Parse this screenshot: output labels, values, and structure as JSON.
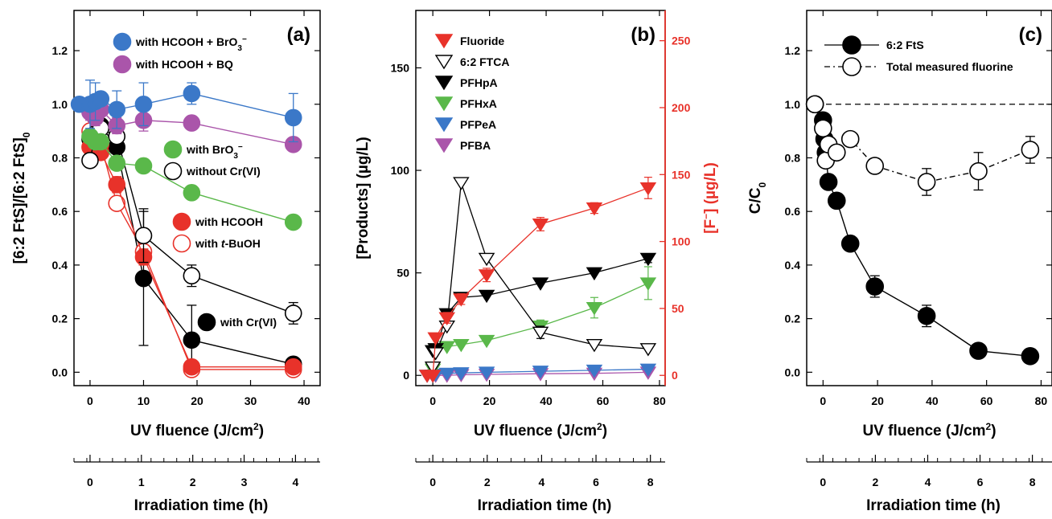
{
  "chart_data": [
    {
      "id": "a",
      "type": "scatter",
      "panel_label": "(a)",
      "ylabel_parts": [
        "[6:2 FtS]/[6:2 FtS]",
        "0"
      ],
      "xlabel_main": "UV fluence (J/cm",
      "xlabel_sup": "2",
      "xlabel_end": ")",
      "xlim": [
        -3,
        43
      ],
      "ylim": [
        -0.05,
        1.35
      ],
      "xticks": [
        0,
        10,
        20,
        30,
        40
      ],
      "yticks": [
        0.0,
        0.2,
        0.4,
        0.6,
        0.8,
        1.0,
        1.2
      ],
      "ytick_labels": [
        "0.0",
        "0.2",
        "0.4",
        "0.6",
        "0.8",
        "1.0",
        "1.2"
      ],
      "secondary_xaxis": {
        "label": "Irradiation time (h)",
        "ticks": [
          "0",
          "1",
          "2",
          "3",
          "4"
        ],
        "tick_fluence": [
          0,
          9.6,
          19.2,
          28.8,
          38.4
        ]
      },
      "series": [
        {
          "name": "with HCOOH + BrO3⁻",
          "color": "#3b78c8",
          "fill": "filled",
          "x": [
            -2,
            0,
            1,
            2,
            5,
            10,
            19,
            38
          ],
          "y": [
            1.0,
            1.0,
            1.01,
            1.02,
            0.98,
            1.0,
            1.04,
            0.95
          ],
          "err": [
            0,
            0.09,
            0.07,
            0,
            0.07,
            0.08,
            0.04,
            0.09
          ]
        },
        {
          "name": "with HCOOH + BQ",
          "color": "#aa55aa",
          "fill": "filled",
          "x": [
            0,
            1,
            2,
            5,
            10,
            19,
            38
          ],
          "y": [
            0.97,
            0.95,
            0.98,
            0.92,
            0.94,
            0.93,
            0.85
          ],
          "err": [
            0.03,
            0.03,
            0,
            0.03,
            0.04,
            0.02,
            0
          ]
        },
        {
          "name": "with BrO3⁻",
          "color": "#5ab84a",
          "fill": "filled",
          "x": [
            0,
            1,
            2,
            5,
            10,
            19,
            38
          ],
          "y": [
            0.88,
            0.86,
            0.86,
            0.78,
            0.77,
            0.67,
            0.56
          ],
          "err": [
            0,
            0,
            0,
            0,
            0,
            0,
            0
          ]
        },
        {
          "name": "without Cr(VI)",
          "color": "#000000",
          "fill": "open",
          "x": [
            0,
            1,
            2,
            5,
            10,
            19,
            38
          ],
          "y": [
            0.79,
            0.89,
            0.91,
            0.88,
            0.51,
            0.36,
            0.22
          ],
          "err": [
            0,
            0.03,
            0,
            0.05,
            0.1,
            0.04,
            0.04
          ]
        },
        {
          "name": "with HCOOH",
          "color": "#e8322a",
          "fill": "filled",
          "x": [
            0,
            1,
            2,
            5,
            10,
            19,
            38
          ],
          "y": [
            0.84,
            0.83,
            0.82,
            0.7,
            0.43,
            0.02,
            0.02
          ],
          "err": [
            0,
            0,
            0,
            0.03,
            0.03,
            0,
            0
          ]
        },
        {
          "name": "with t-BuOH",
          "color": "#e8322a",
          "fill": "open",
          "x": [
            0,
            1,
            2,
            5,
            10,
            19,
            38
          ],
          "y": [
            0.9,
            0.88,
            0.85,
            0.63,
            0.45,
            0.01,
            0.01
          ],
          "err": [
            0,
            0,
            0,
            0,
            0,
            0,
            0
          ]
        },
        {
          "name": "with Cr(VI)",
          "color": "#000000",
          "fill": "filled",
          "x": [
            0,
            1,
            2,
            5,
            10,
            19,
            38
          ],
          "y": [
            0.87,
            0.95,
            0.92,
            0.84,
            0.35,
            0.12,
            0.03
          ],
          "err": [
            0.03,
            0,
            0,
            0,
            0.25,
            0.13,
            0
          ]
        }
      ],
      "legend_top": [
        0,
        1
      ],
      "legend_middle": [
        2,
        3
      ],
      "legend_lower": [
        4,
        5
      ],
      "legend_bottom": [
        6
      ]
    },
    {
      "id": "b",
      "type": "line",
      "panel_label": "(b)",
      "ylabel_left": "[Products] (µg/L)",
      "ylabel_right_pre": "[F",
      "ylabel_right_sup": "−",
      "ylabel_right_post": "] (µg/L)",
      "xlabel_main": "UV fluence (J/cm",
      "xlabel_sup": "2",
      "xlabel_end": ")",
      "xlim": [
        -6,
        82
      ],
      "ylim": [
        -5,
        178
      ],
      "y2lim": [
        -7.66,
        272.6
      ],
      "xticks": [
        0,
        20,
        40,
        60,
        80
      ],
      "yticks": [
        0,
        50,
        100,
        150
      ],
      "y2ticks": [
        0,
        50,
        100,
        150,
        200,
        250
      ],
      "secondary_xaxis": {
        "label": "Irradiation time (h)",
        "ticks": [
          "0",
          "2",
          "4",
          "6",
          "8"
        ],
        "tick_fluence": [
          0,
          19.2,
          38.4,
          57.6,
          76.8
        ]
      },
      "series": [
        {
          "name": "Fluoride",
          "color": "#e8322a",
          "fill": "filled",
          "marker": "tri-down",
          "axis": "right",
          "x": [
            -2,
            0,
            1,
            5,
            10,
            19,
            38,
            57,
            76
          ],
          "y": [
            0,
            0,
            28,
            43,
            57,
            75,
            113,
            125,
            140
          ],
          "err": [
            0,
            0,
            0,
            4,
            4,
            5,
            5,
            4,
            8
          ]
        },
        {
          "name": "6:2 FTCA",
          "color": "#000000",
          "fill": "open",
          "marker": "tri-down",
          "axis": "left",
          "x": [
            0,
            1,
            5,
            10,
            19,
            38,
            57,
            76
          ],
          "y": [
            4,
            11,
            24,
            94,
            57,
            21,
            15,
            13
          ],
          "err": [
            0,
            0,
            0,
            0,
            0,
            3,
            0,
            0
          ]
        },
        {
          "name": "PFHpA",
          "color": "#000000",
          "fill": "filled",
          "marker": "tri-down",
          "axis": "left",
          "x": [
            0,
            1,
            5,
            10,
            19,
            38,
            57,
            76
          ],
          "y": [
            12,
            13,
            30,
            38,
            39,
            45,
            50,
            57
          ],
          "err": [
            0,
            0,
            0,
            0,
            0,
            0,
            0,
            2
          ]
        },
        {
          "name": "PFHxA",
          "color": "#5ab84a",
          "fill": "filled",
          "marker": "tri-down",
          "axis": "left",
          "x": [
            0,
            1,
            5,
            10,
            19,
            38,
            57,
            76
          ],
          "y": [
            3,
            12,
            14,
            15,
            17,
            24,
            33,
            45
          ],
          "err": [
            0,
            0,
            0,
            0,
            0,
            3,
            5,
            8
          ]
        },
        {
          "name": "PFPeA",
          "color": "#3b78c8",
          "fill": "filled",
          "marker": "tri-down",
          "axis": "left",
          "x": [
            -2,
            0,
            1,
            5,
            10,
            19,
            38,
            57,
            76
          ],
          "y": [
            0,
            0,
            0.5,
            1,
            1.2,
            1.5,
            2,
            2.5,
            3
          ],
          "err": [
            0,
            0,
            0,
            0,
            0,
            0,
            0,
            0,
            0
          ]
        },
        {
          "name": "PFBA",
          "color": "#aa55aa",
          "fill": "filled",
          "marker": "tri-down",
          "axis": "left",
          "x": [
            -2,
            0,
            1,
            5,
            10,
            19,
            38,
            57,
            76
          ],
          "y": [
            0,
            0,
            0,
            0,
            0.3,
            0.5,
            0.8,
            1,
            1.5
          ],
          "err": [
            0,
            0,
            0,
            0,
            0,
            0,
            0,
            0,
            0
          ]
        }
      ]
    },
    {
      "id": "c",
      "type": "line",
      "panel_label": "(c)",
      "ylabel_main": "C/C",
      "ylabel_sub": "0",
      "xlabel_main": "UV fluence (J/cm",
      "xlabel_sup": "2",
      "xlabel_end": ")",
      "xlim": [
        -6,
        84
      ],
      "ylim": [
        -0.05,
        1.35
      ],
      "xticks": [
        0,
        20,
        40,
        60,
        80
      ],
      "yticks": [
        0.0,
        0.2,
        0.4,
        0.6,
        0.8,
        1.0,
        1.2
      ],
      "ytick_labels": [
        "0.0",
        "0.2",
        "0.4",
        "0.6",
        "0.8",
        "1.0",
        "1.2"
      ],
      "reference_line_y": 1.0,
      "secondary_xaxis": {
        "label": "Irradiation time (h)",
        "ticks": [
          "0",
          "2",
          "4",
          "6",
          "8"
        ],
        "tick_fluence": [
          0,
          19.2,
          38.4,
          57.6,
          76.8
        ]
      },
      "series": [
        {
          "name": "6:2 FtS",
          "color": "#000000",
          "fill": "filled",
          "dash": false,
          "x": [
            -3,
            0,
            0.5,
            1,
            2,
            5,
            10,
            19,
            38,
            57,
            76
          ],
          "y": [
            1.0,
            0.94,
            0.87,
            0.82,
            0.71,
            0.64,
            0.48,
            0.32,
            0.21,
            0.08,
            0.06
          ],
          "err": [
            0,
            0,
            0,
            0,
            0,
            0,
            0,
            0.04,
            0.04,
            0,
            0
          ]
        },
        {
          "name": "Total measured fluorine",
          "color": "#000000",
          "fill": "open",
          "dash": true,
          "x": [
            -3,
            0,
            1,
            2,
            5,
            10,
            19,
            38,
            57,
            76
          ],
          "y": [
            1.0,
            0.91,
            0.79,
            0.85,
            0.82,
            0.87,
            0.77,
            0.71,
            0.75,
            0.83
          ],
          "err": [
            0,
            0,
            0,
            0,
            0,
            0,
            0,
            0.05,
            0.07,
            0.05
          ]
        }
      ]
    }
  ],
  "legend_extra": {
    "with_tbuoh_prefix": "with ",
    "with_tbuoh_italic": "t",
    "with_tbuoh_suffix": "-BuOH"
  }
}
